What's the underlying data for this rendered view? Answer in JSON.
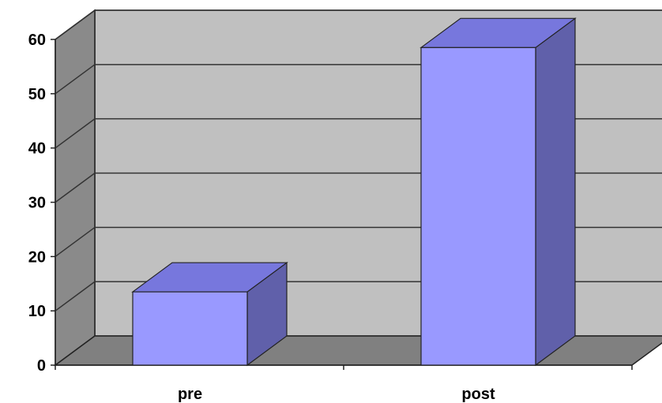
{
  "chart_data": {
    "type": "bar",
    "style": "3d",
    "categories": [
      "pre",
      "post"
    ],
    "values": [
      13.5,
      58.5
    ],
    "ylim": [
      0,
      60
    ],
    "yticks": [
      0,
      10,
      20,
      30,
      40,
      50,
      60
    ],
    "ytick_labels": [
      "0",
      "10",
      "20",
      "30",
      "40",
      "50",
      "60"
    ],
    "grid": true,
    "legend": "none",
    "colors": {
      "bar_front": "#9999ff",
      "bar_top": "#7777dd",
      "bar_side": "#6060aa",
      "back_wall": "#c0c0c0",
      "side_wall": "#8a8a8a",
      "floor": "#808080",
      "gridline": "#333333"
    }
  }
}
